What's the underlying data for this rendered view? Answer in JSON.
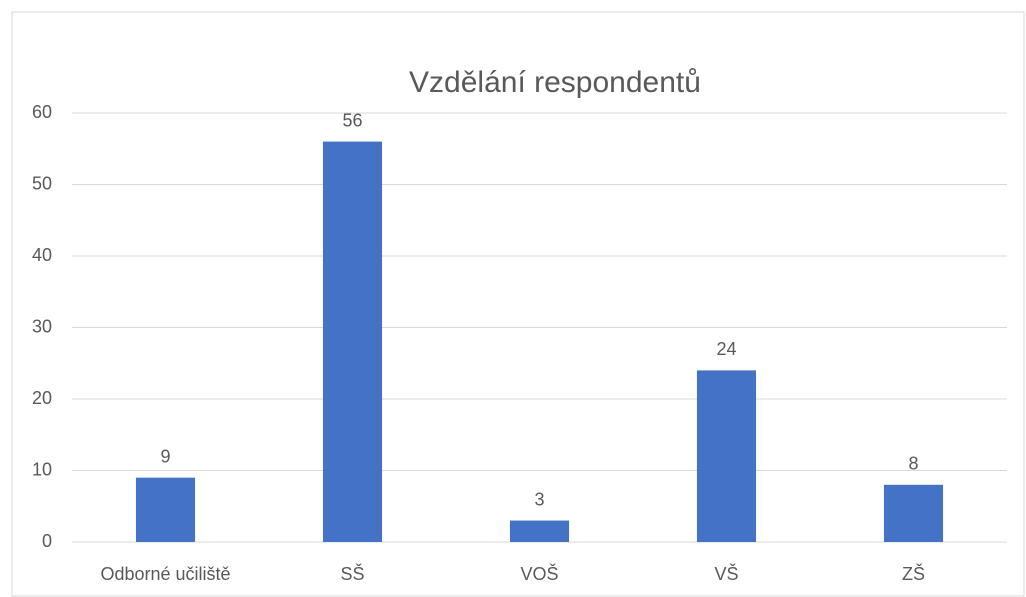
{
  "chart_data": {
    "type": "bar",
    "title": "Vzdělání respondentů",
    "categories": [
      "Odborné učiliště",
      "SŠ",
      "VOŠ",
      "VŠ",
      "ZŠ"
    ],
    "values": [
      9,
      56,
      3,
      24,
      8
    ],
    "color": "#4472c4",
    "ylim": [
      0,
      60
    ],
    "yticks": [
      0,
      10,
      20,
      30,
      40,
      50,
      60
    ],
    "grid": true
  }
}
